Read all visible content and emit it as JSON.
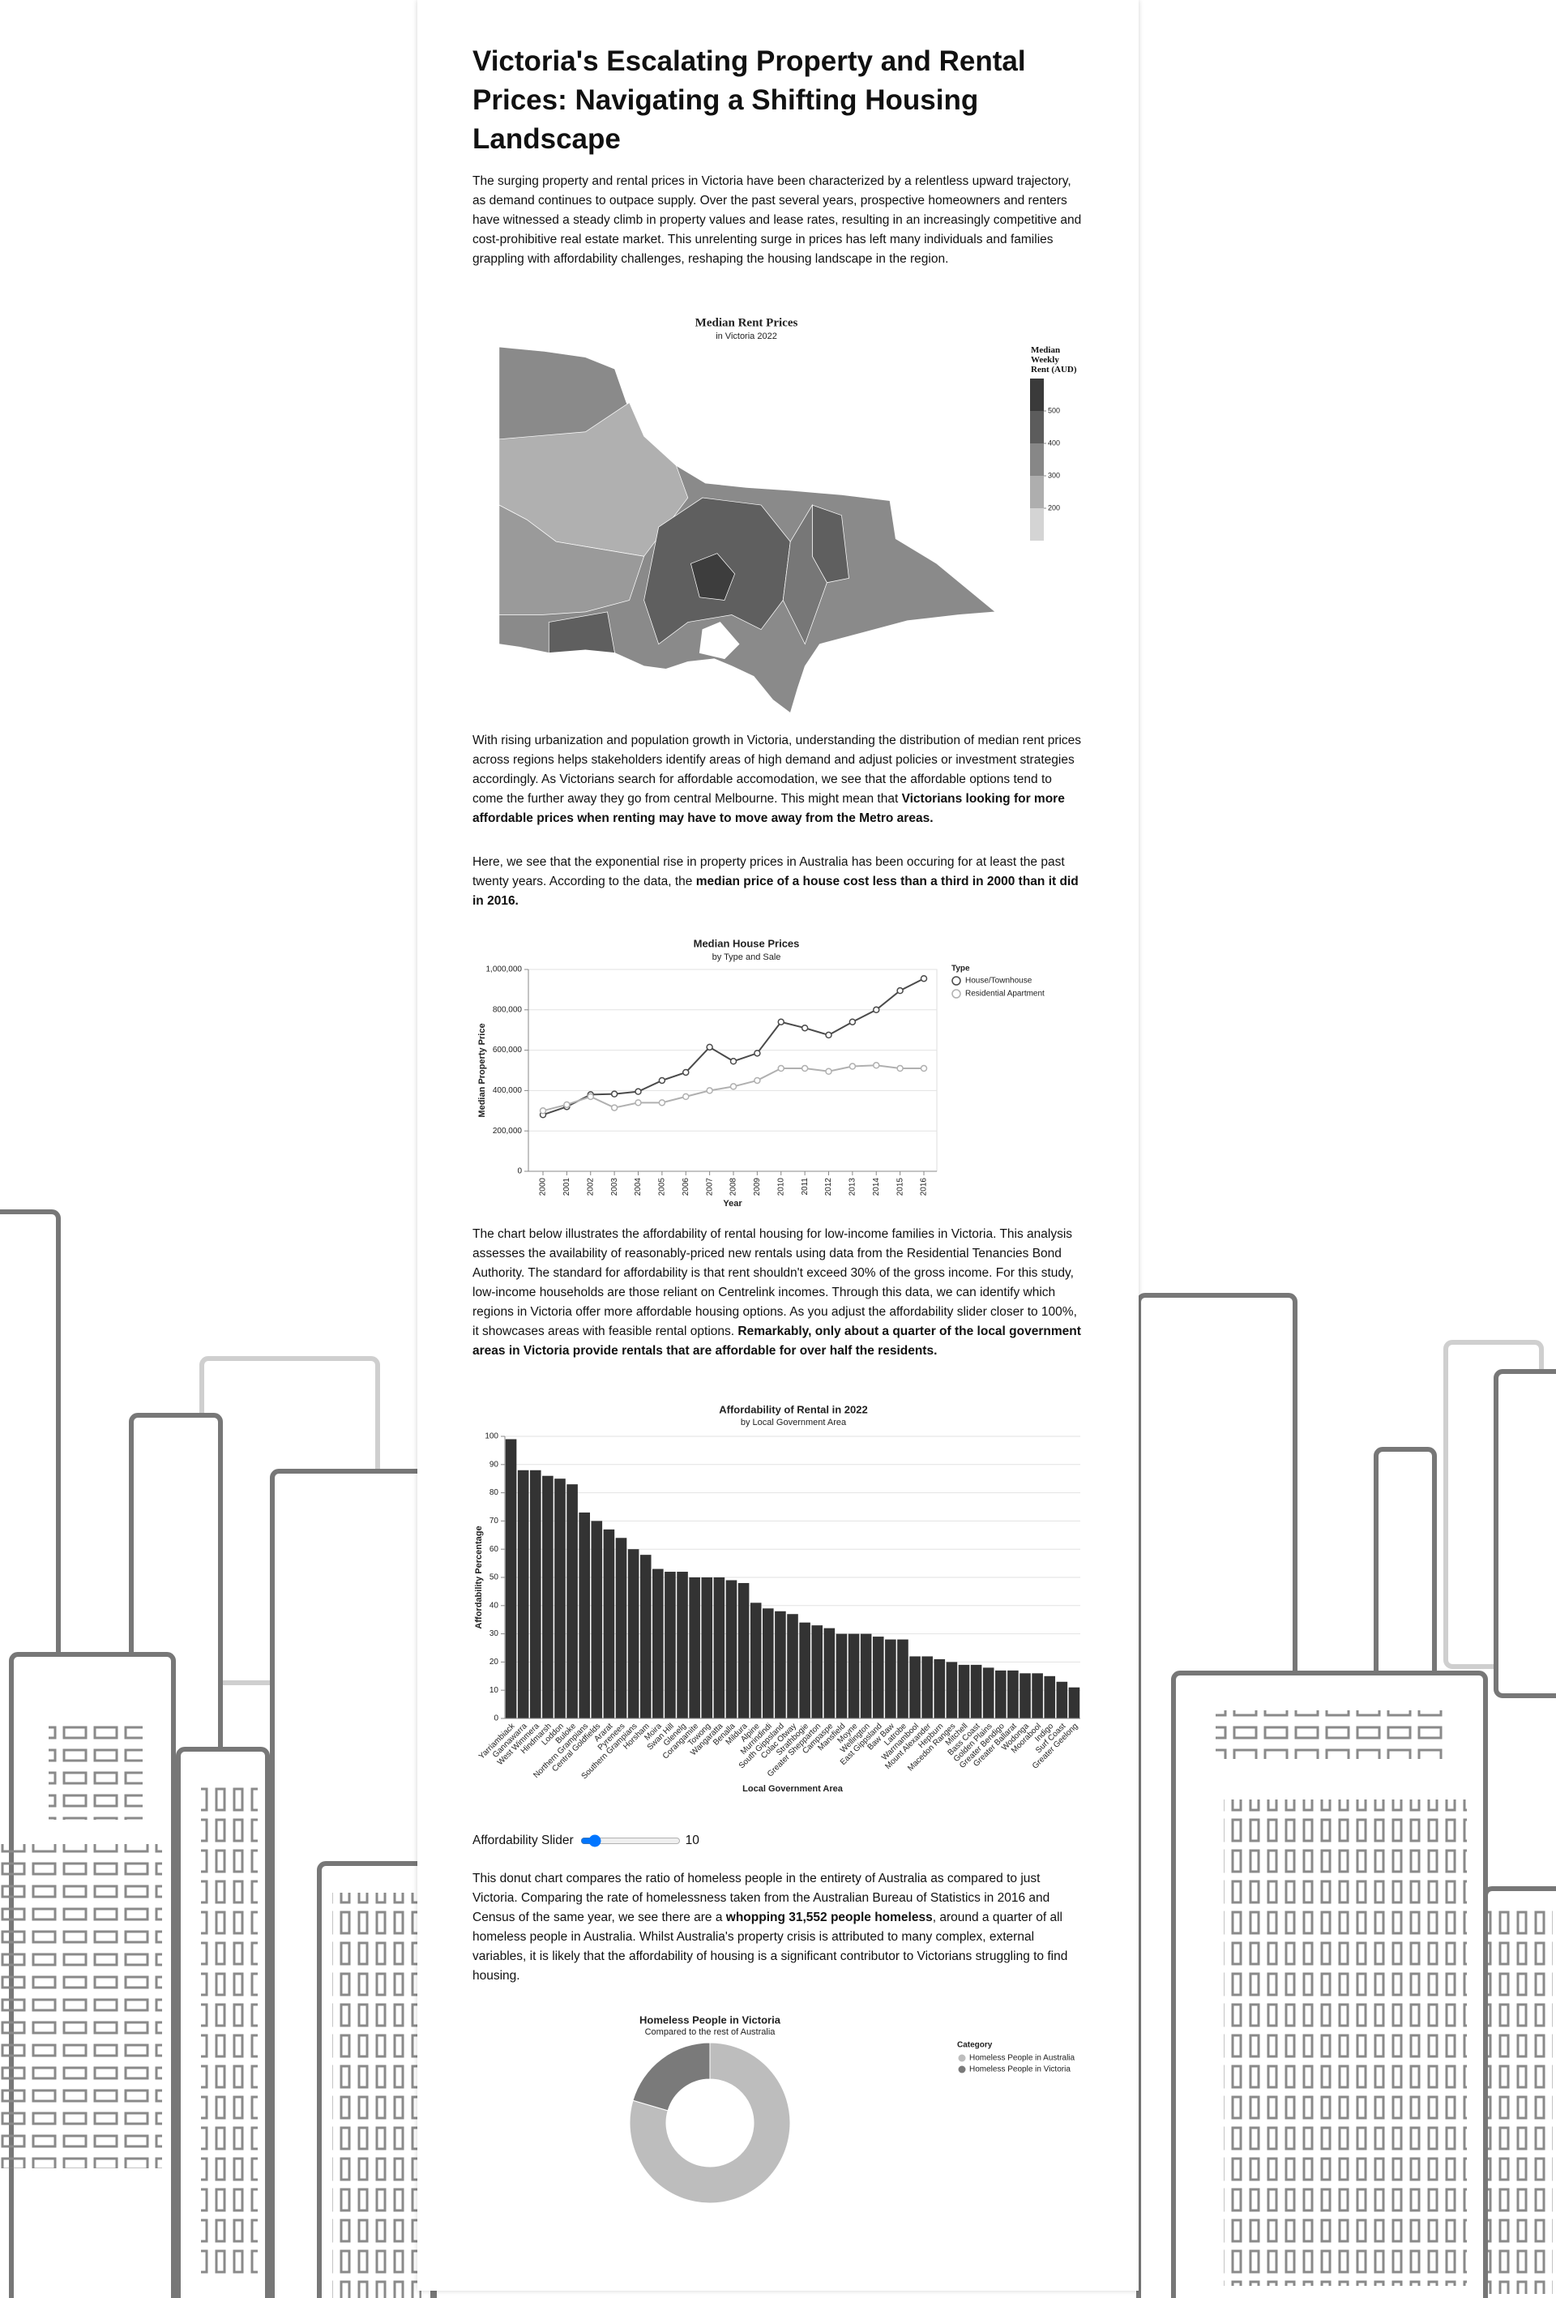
{
  "title": "Victoria's Escalating Property and Rental Prices: Navigating a Shifting Housing Landscape",
  "paragraphs": [
    [
      {
        "text": "The surging property and rental prices in Victoria have been characterized by a relentless upward trajectory, as demand continues to outpace supply. Over the past several years, prospective homeowners and renters have witnessed a steady climb in property values and lease rates, resulting in an increasingly competitive and cost-prohibitive real estate market. This unrelenting surge in prices has left many individuals and families grappling with affordability challenges, reshaping the housing landscape in the region.",
        "bold": false
      }
    ],
    [
      {
        "text": "With rising urbanization and population growth in Victoria, understanding the distribution of median rent prices across regions helps stakeholders identify areas of high demand and adjust policies or investment strategies accordingly. As Victorians search for affordable accomodation, we see that the affordable options tend to come the further away they go from central Melbourne. This might mean that ",
        "bold": false
      },
      {
        "text": "Victorians looking for more affordable prices when renting may have to move away from the Metro areas.",
        "bold": true
      }
    ],
    [
      {
        "text": "Here, we see that the exponential rise in property prices in Australia has been occuring for at least the past twenty years. According to the data, the ",
        "bold": false
      },
      {
        "text": "median price of a house cost less than a third in 2000 than it did in 2016.",
        "bold": true
      }
    ],
    [
      {
        "text": "The chart below illustrates the affordability of rental housing for low-income families in Victoria. This analysis assesses the availability of reasonably-priced new rentals using data from the Residential Tenancies Bond Authority. The standard for affordability is that rent shouldn't exceed 30% of the gross income. For this study, low-income households are those reliant on Centrelink incomes. Through this data, we can identify which regions in Victoria offer more affordable housing options. As you adjust the affordability slider closer to 100%, it showcases areas with feasible rental options. ",
        "bold": false
      },
      {
        "text": "Remarkably, only about a quarter of the local government areas in Victoria provide rentals that are affordable for over half the residents.",
        "bold": true
      }
    ],
    [
      {
        "text": "This donut chart compares the ratio of homeless people in the entirety of Australia as compared to just Victoria. Comparing the rate of homelessness taken from the Australian Bureau of Statistics in 2016 and Census of the same year, we see there are a ",
        "bold": false
      },
      {
        "text": "whopping 31,552 people homeless",
        "bold": true
      },
      {
        "text": ", around a quarter of all homeless people in Australia. Whilst Australia's property crisis is attributed to many complex, external variables, it is likely that the affordability of housing is a significant contributor to Victorians struggling to find housing.",
        "bold": false
      }
    ]
  ],
  "slider": {
    "label": "Affordability Slider",
    "value": 10
  },
  "chart_data": [
    {
      "type": "choropleth",
      "title": "Median Rent Prices",
      "subtitle": "in Victoria 2022",
      "legend_title": "Median Weekly Rent (AUD)",
      "legend_lim": [
        100,
        600
      ],
      "legend_ticks": [
        200,
        300,
        400,
        500
      ],
      "legend_colors": [
        "#3a3a3a",
        "#5c5c5c",
        "#878787",
        "#aeaeae",
        "#d4d4d4"
      ]
    },
    {
      "type": "line",
      "title": "Median House Prices",
      "subtitle": "by Type and Sale",
      "x_label": "Year",
      "y_label": "Median Property Price",
      "legend_title": "Type",
      "grid": true,
      "categories": [
        "2000",
        "2001",
        "2002",
        "2003",
        "2004",
        "2005",
        "2006",
        "2007",
        "2008",
        "2009",
        "2010",
        "2011",
        "2012",
        "2013",
        "2014",
        "2015",
        "2016"
      ],
      "series": [
        {
          "name": "House/Townhouse",
          "color": "#4a4a4a",
          "values": [
            280000,
            320000,
            380000,
            383000,
            395000,
            450000,
            490000,
            615000,
            545000,
            585000,
            740000,
            710000,
            675000,
            740000,
            800000,
            895000,
            955000
          ]
        },
        {
          "name": "Residential Apartment",
          "color": "#b0b0b0",
          "values": [
            300000,
            330000,
            370000,
            315000,
            340000,
            340000,
            370000,
            400000,
            420000,
            450000,
            510000,
            510000,
            495000,
            520000,
            525000,
            510000,
            510000
          ]
        }
      ],
      "ylim": [
        0,
        1000000
      ],
      "yticks": [
        0,
        {
          "value": 200000,
          "label": "200,000"
        },
        {
          "value": 400000,
          "label": "400,000"
        },
        {
          "value": 600000,
          "label": "600,000"
        },
        {
          "value": 800000,
          "label": "800,000"
        },
        {
          "value": 1000000,
          "label": "1,000,000"
        }
      ]
    },
    {
      "type": "bar",
      "title": "Affordability of Rental in 2022",
      "subtitle": "by Local Government Area",
      "x_label": "Local Government Area",
      "y_label": "Affordability Percentage",
      "color": "#333333",
      "grid": true,
      "categories": [
        "Yarriambiack",
        "Gannawarra",
        "West Wimmera",
        "Hindmarsh",
        "Loddon",
        "Buloke",
        "Northern Grampians",
        "Central Goldfields",
        "Ararat",
        "Pyrenees",
        "Southern Grampians",
        "Horsham",
        "Moira",
        "Swan Hill",
        "Glenelg",
        "Corangamite",
        "Towong",
        "Wangaratta",
        "Benalla",
        "Mildura",
        "Alpine",
        "Murrindindi",
        "South Gippsland",
        "Colac Otway",
        "Strathbogie",
        "Greater Shepparton",
        "Campaspe",
        "Mansfield",
        "Moyne",
        "Wellington",
        "East Gippsland",
        "Baw Baw",
        "Latrobe",
        "Warrnambool",
        "Mount Alexander",
        "Hepburn",
        "Macedon Ranges",
        "Mitchell",
        "Bass Coast",
        "Golden Plains",
        "Greater Bendigo",
        "Greater Ballarat",
        "Wodonga",
        "Moorabool",
        "Indigo",
        "Surf Coast",
        "Greater Geelong"
      ],
      "values": [
        99,
        88,
        88,
        86,
        85,
        83,
        73,
        70,
        67,
        64,
        60,
        58,
        53,
        52,
        52,
        50,
        50,
        50,
        49,
        48,
        41,
        39,
        38,
        37,
        34,
        33,
        32,
        30,
        30,
        30,
        29,
        28,
        28,
        22,
        22,
        21,
        20,
        19,
        19,
        18,
        17,
        17,
        16,
        16,
        15,
        13,
        11
      ],
      "ylim": [
        0,
        100
      ],
      "yticks": [
        0,
        10,
        20,
        30,
        40,
        50,
        60,
        70,
        80,
        90,
        100
      ]
    },
    {
      "type": "donut",
      "title": "Homeless People in Victoria",
      "subtitle": "Compared to the rest of Australia",
      "legend_title": "Category",
      "categories": [
        "Homeless People in Australia",
        "Homeless People in Victoria"
      ],
      "values": [
        122494,
        31552
      ],
      "colors": [
        "#bdbdbd",
        "#7a7a7a"
      ]
    }
  ]
}
